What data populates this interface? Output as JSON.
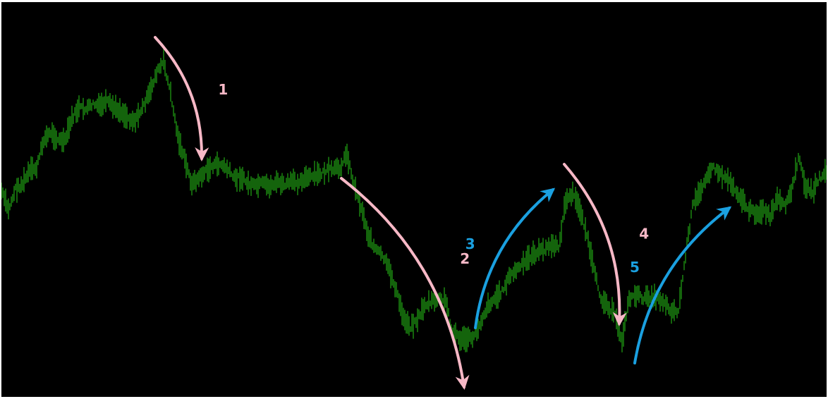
{
  "colors": {
    "background": "#000000",
    "frame": "#ffffff",
    "price": "#1f9a12",
    "impulse": "#f7b8c6",
    "correction": "#1aa0e0"
  },
  "chart_data": {
    "type": "line",
    "title": "",
    "xlabel": "",
    "ylabel": "",
    "axes_visible": false,
    "grid": false,
    "xlim": [
      0,
      1170
    ],
    "ylim": [
      0,
      560
    ],
    "series": [
      {
        "style": "dense vertical bars (price ticks)",
        "x": [
          0,
          10,
          20,
          30,
          40,
          50,
          60,
          70,
          80,
          90,
          100,
          110,
          120,
          130,
          140,
          150,
          160,
          170,
          180,
          190,
          200,
          210,
          220,
          230,
          240,
          250,
          260,
          270,
          280,
          290,
          300,
          310,
          320,
          330,
          340,
          350,
          360,
          370,
          380,
          390,
          400,
          410,
          420,
          430,
          440,
          450,
          460,
          470,
          480,
          490,
          500,
          510,
          520,
          530,
          540,
          550,
          560,
          570,
          580,
          590,
          600,
          610,
          620,
          630,
          640,
          650,
          660,
          670,
          680,
          690,
          700,
          710,
          720,
          730,
          740,
          750,
          760,
          770,
          780,
          790,
          800,
          810,
          820,
          830,
          840,
          850,
          860,
          870,
          880,
          890,
          900,
          910,
          920,
          930,
          940,
          950,
          960,
          970,
          980,
          990,
          1000,
          1010,
          1020,
          1030,
          1040,
          1050,
          1060,
          1070,
          1080,
          1090,
          1100,
          1110,
          1120,
          1130,
          1140,
          1150,
          1160,
          1170
        ],
        "y": [
          268,
          295,
          265,
          258,
          240,
          235,
          195,
          185,
          195,
          198,
          165,
          150,
          152,
          145,
          148,
          142,
          150,
          155,
          165,
          168,
          150,
          130,
          100,
          85,
          130,
          190,
          225,
          258,
          250,
          240,
          232,
          230,
          236,
          250,
          248,
          258,
          262,
          258,
          262,
          255,
          260,
          255,
          255,
          250,
          248,
          245,
          240,
          238,
          235,
          215,
          260,
          290,
          330,
          350,
          360,
          380,
          410,
          448,
          460,
          450,
          430,
          425,
          420,
          425,
          468,
          478,
          478,
          475,
          452,
          430,
          420,
          410,
          390,
          380,
          372,
          360,
          355,
          350,
          345,
          348,
          282,
          272,
          292,
          330,
          380,
          420,
          430,
          445,
          480,
          420,
          415,
          420,
          418,
          420,
          425,
          438,
          438,
          360,
          290,
          270,
          245,
          235,
          245,
          250,
          265,
          280,
          295,
          300,
          295,
          305,
          280,
          290,
          270,
          220,
          260,
          270,
          250,
          240
        ]
      }
    ],
    "annotations": [
      {
        "label": "1",
        "wave": "impulse",
        "from": [
          218,
          50
        ],
        "to": [
          284,
          222
        ]
      },
      {
        "label": "2",
        "wave": "impulse",
        "from": [
          482,
          250
        ],
        "to": [
          656,
          546
        ]
      },
      {
        "label": "3",
        "wave": "correction",
        "from": [
          672,
          462
        ],
        "to": [
          782,
          266
        ]
      },
      {
        "label": "4",
        "wave": "impulse",
        "from": [
          798,
          230
        ],
        "to": [
          876,
          456
        ]
      },
      {
        "label": "5",
        "wave": "correction",
        "from": [
          898,
          512
        ],
        "to": [
          1032,
          292
        ]
      }
    ]
  }
}
